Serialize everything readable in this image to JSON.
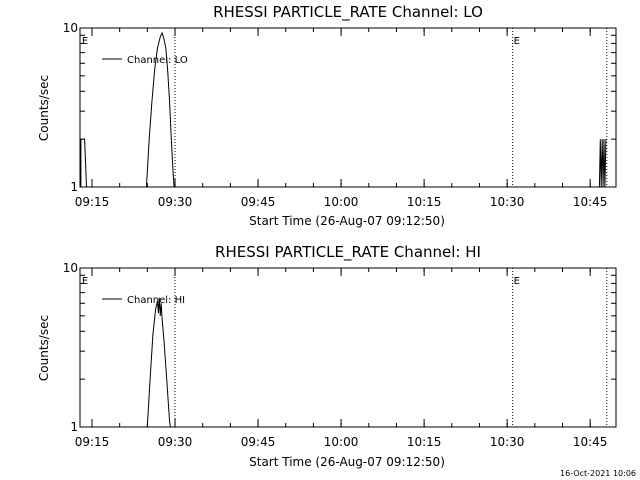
{
  "footer": {
    "timestamp": "16-Oct-2021 10:06"
  },
  "chart_data": [
    {
      "type": "line",
      "title": "RHESSI PARTICLE_RATE Channel: LO",
      "xlabel": "Start Time (26-Aug-07 09:12:50)",
      "ylabel": "Counts/sec",
      "yscale": "log",
      "xlim": [
        "09:12:50",
        "10:49:40"
      ],
      "ylim": [
        1,
        10
      ],
      "x_tick_labels": [
        "09:15",
        "09:30",
        "09:45",
        "10:00",
        "10:15",
        "10:30",
        "10:45"
      ],
      "y_tick_labels": [
        "1",
        "10"
      ],
      "legend": {
        "entries": [
          "Channel: LO"
        ],
        "position": "top-left"
      },
      "markers": [
        {
          "time": "09:13:00",
          "label": "E",
          "dotted": false
        },
        {
          "time": "09:30:00",
          "label": "",
          "dotted": true
        },
        {
          "time": "10:31:00",
          "label": "E",
          "dotted": true
        },
        {
          "time": "10:48:00",
          "label": "",
          "dotted": true
        }
      ],
      "series": [
        {
          "name": "Channel: LO",
          "segments": [
            {
              "x": [
                "09:13:00",
                "09:13:00",
                "09:13:40",
                "09:14:00",
                "09:14:00"
              ],
              "y": [
                1,
                2,
                2,
                1,
                1
              ]
            },
            {
              "x": [
                "09:24:50",
                "09:25:20",
                "09:25:50",
                "09:26:20",
                "09:26:50",
                "09:27:20",
                "09:27:40",
                "09:28:00",
                "09:28:20",
                "09:28:40",
                "09:29:00",
                "09:29:20",
                "09:29:40",
                "09:29:50"
              ],
              "y": [
                1,
                2,
                3.5,
                5.5,
                7.5,
                8.8,
                9.3,
                8.5,
                7.5,
                5.5,
                3.5,
                2,
                1.2,
                1
              ]
            },
            {
              "x": [
                "10:46:40",
                "10:46:50",
                "10:47:00",
                "10:47:10",
                "10:47:20",
                "10:47:30",
                "10:47:40",
                "10:47:50"
              ],
              "y": [
                1,
                2,
                1,
                2,
                1,
                2,
                1,
                2
              ]
            }
          ]
        }
      ]
    },
    {
      "type": "line",
      "title": "RHESSI PARTICLE_RATE Channel: HI",
      "xlabel": "Start Time (26-Aug-07 09:12:50)",
      "ylabel": "Counts/sec",
      "yscale": "log",
      "xlim": [
        "09:12:50",
        "10:49:40"
      ],
      "ylim": [
        1,
        10
      ],
      "x_tick_labels": [
        "09:15",
        "09:30",
        "09:45",
        "10:00",
        "10:15",
        "10:30",
        "10:45"
      ],
      "y_tick_labels": [
        "1",
        "10"
      ],
      "legend": {
        "entries": [
          "Channel: HI"
        ],
        "position": "top-left"
      },
      "markers": [
        {
          "time": "09:13:00",
          "label": "E",
          "dotted": false
        },
        {
          "time": "09:30:00",
          "label": "",
          "dotted": true
        },
        {
          "time": "10:31:00",
          "label": "E",
          "dotted": true
        },
        {
          "time": "10:48:00",
          "label": "",
          "dotted": true
        }
      ],
      "series": [
        {
          "name": "Channel: HI",
          "segments": [
            {
              "x": [
                "09:25:00",
                "09:25:30",
                "09:26:00",
                "09:26:30",
                "09:26:50",
                "09:27:00",
                "09:27:10",
                "09:27:20",
                "09:27:30",
                "09:27:40",
                "09:28:00",
                "09:28:30",
                "09:29:00",
                "09:29:10"
              ],
              "y": [
                1,
                2,
                3.8,
                5.5,
                6.2,
                5.2,
                6.5,
                5.0,
                6.0,
                4.8,
                3.5,
                2,
                1.1,
                1
              ]
            }
          ]
        }
      ]
    }
  ]
}
